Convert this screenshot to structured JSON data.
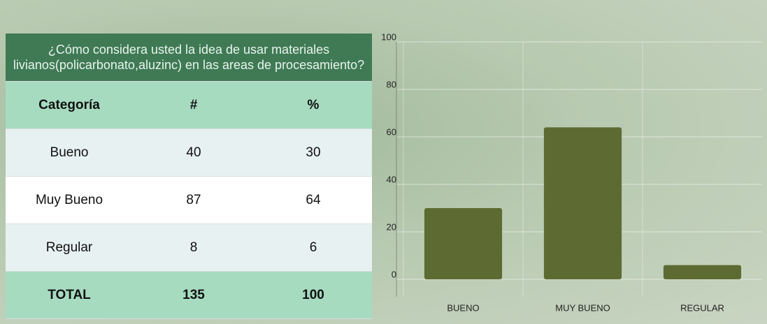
{
  "table": {
    "title": "¿Cómo considera usted la idea de usar materiales livianos(policarbonato,aluzinc) en las areas de procesamiento?",
    "header": [
      "Categoría",
      "#",
      "%"
    ],
    "rows": [
      [
        "Bueno",
        40,
        30
      ],
      [
        "Muy Bueno",
        87,
        64
      ],
      [
        "Regular",
        8,
        6
      ]
    ],
    "total": [
      "TOTAL",
      135,
      100
    ]
  },
  "chart_data": {
    "type": "bar",
    "categories": [
      "BUENO",
      "MUY BUENO",
      "REGULAR"
    ],
    "values": [
      30,
      64,
      6
    ],
    "color": "#5d6b32",
    "ylim": [
      0,
      100
    ],
    "yticks": [
      0,
      20,
      40,
      60,
      80,
      100
    ],
    "grid": true
  }
}
